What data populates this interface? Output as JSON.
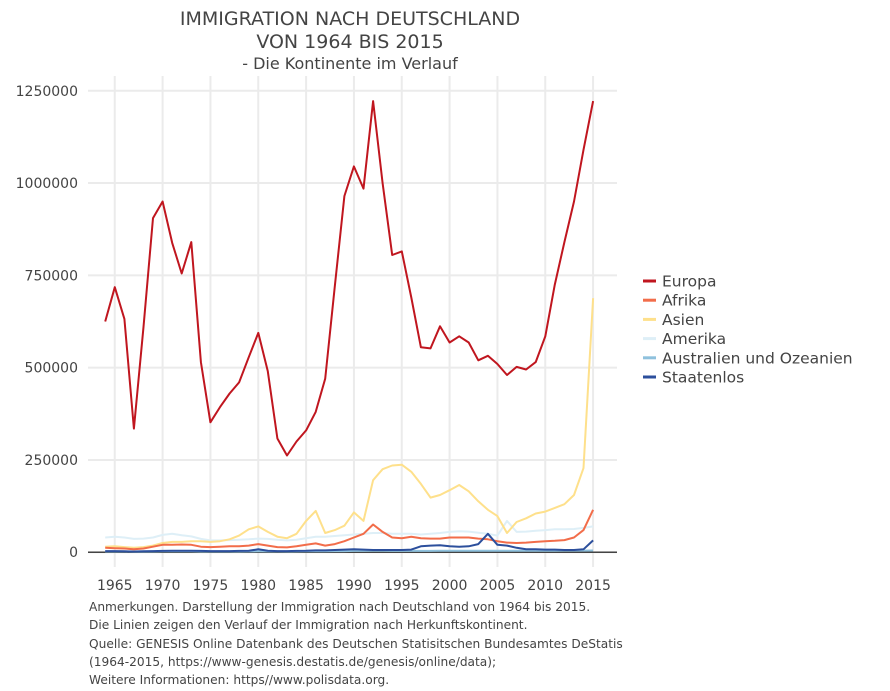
{
  "title_line1": "IMMIGRATION NACH DEUTSCHLAND",
  "title_line2": "VON 1964 BIS 2015",
  "subtitle": "- Die Kontinente im Verlauf",
  "notes": [
    "Anmerkungen. Darstellung der Immigration nach Deutschland von 1964 bis 2015.",
    "Die Linien zeigen den Verlauf der Immigration nach Herkunftskontinent.",
    "Quelle: GENESIS Online Datenbank des Deutschen Statisitschen Bundesamtes DeStatis",
    "(1964-2015, https://www-genesis.destatis.de/genesis/online/data);",
    " Weitere Informationen: https//www.polisdata.org."
  ],
  "chart_data": {
    "type": "line",
    "x_tick_labels": [
      "1965",
      "1970",
      "1975",
      "1980",
      "1985",
      "1990",
      "1995",
      "2000",
      "2005",
      "2010",
      "2015"
    ],
    "y_tick_labels": [
      "0",
      "250000",
      "500000",
      "750000",
      "1000000",
      "1250000"
    ],
    "xlim": [
      1962.2,
      2017.5
    ],
    "ylim": [
      -40000,
      1290000
    ],
    "grid": true,
    "legend_position": "right",
    "x": [
      1964,
      1965,
      1966,
      1967,
      1968,
      1969,
      1970,
      1971,
      1972,
      1973,
      1974,
      1975,
      1976,
      1977,
      1978,
      1979,
      1980,
      1981,
      1982,
      1983,
      1984,
      1985,
      1986,
      1987,
      1988,
      1989,
      1990,
      1991,
      1992,
      1993,
      1994,
      1995,
      1996,
      1997,
      1998,
      1999,
      2000,
      2001,
      2002,
      2003,
      2004,
      2005,
      2006,
      2007,
      2008,
      2009,
      2010,
      2011,
      2012,
      2013,
      2014,
      2015
    ],
    "series": [
      {
        "name": "Europa",
        "color": "#c0161f",
        "values": [
          625000,
          718000,
          632000,
          335000,
          610000,
          905000,
          950000,
          838000,
          755000,
          840000,
          515000,
          352000,
          393000,
          430000,
          460000,
          528000,
          594000,
          490000,
          308000,
          262000,
          300000,
          330000,
          380000,
          470000,
          720000,
          965000,
          1045000,
          985000,
          1222000,
          1000000,
          805000,
          815000,
          690000,
          555000,
          552000,
          612000,
          568000,
          585000,
          568000,
          520000,
          532000,
          510000,
          480000,
          502000,
          495000,
          515000,
          585000,
          725000,
          840000,
          950000,
          1090000,
          1222000
        ]
      },
      {
        "name": "Afrika",
        "color": "#f26d4a",
        "values": [
          12000,
          11000,
          10000,
          8000,
          10000,
          15000,
          20000,
          20000,
          21000,
          20000,
          15000,
          14000,
          15000,
          16000,
          16000,
          18000,
          22000,
          18000,
          14000,
          13000,
          16000,
          20000,
          24000,
          18000,
          22000,
          30000,
          40000,
          50000,
          75000,
          55000,
          40000,
          38000,
          42000,
          38000,
          37000,
          37000,
          40000,
          40000,
          40000,
          37000,
          35000,
          30000,
          26000,
          25000,
          26000,
          28000,
          30000,
          31000,
          33000,
          40000,
          60000,
          115000
        ]
      },
      {
        "name": "Asien",
        "color": "#fee08b",
        "values": [
          15000,
          16000,
          14000,
          12000,
          14000,
          18000,
          25000,
          28000,
          28000,
          30000,
          30000,
          28000,
          30000,
          35000,
          45000,
          62000,
          70000,
          55000,
          42000,
          38000,
          50000,
          85000,
          112000,
          52000,
          60000,
          72000,
          108000,
          85000,
          195000,
          225000,
          235000,
          237000,
          218000,
          185000,
          148000,
          155000,
          168000,
          182000,
          165000,
          138000,
          115000,
          98000,
          52000,
          82000,
          92000,
          105000,
          110000,
          120000,
          130000,
          155000,
          228000,
          688000
        ]
      },
      {
        "name": "Amerika",
        "color": "#deeff7",
        "values": [
          40000,
          42000,
          40000,
          36000,
          37000,
          40000,
          47000,
          50000,
          46000,
          43000,
          36000,
          32000,
          32000,
          33000,
          34000,
          35000,
          37000,
          36000,
          34000,
          32000,
          34000,
          38000,
          42000,
          42000,
          44000,
          46000,
          48000,
          50000,
          52000,
          52000,
          50000,
          50000,
          50000,
          48000,
          50000,
          52000,
          55000,
          57000,
          56000,
          53000,
          50000,
          45000,
          85000,
          55000,
          56000,
          58000,
          60000,
          62000,
          62000,
          63000,
          66000,
          70000
        ]
      },
      {
        "name": "Australien und Ozeanien",
        "color": "#8fc1dd",
        "values": [
          2000,
          2000,
          2000,
          1500,
          1800,
          2000,
          2500,
          2500,
          2500,
          2500,
          2000,
          2000,
          2000,
          2000,
          2000,
          2200,
          2500,
          2300,
          2200,
          2000,
          2200,
          2500,
          2800,
          2800,
          3000,
          3200,
          3500,
          3500,
          3800,
          3800,
          3700,
          3600,
          3600,
          3600,
          3700,
          3800,
          4000,
          4100,
          4000,
          3900,
          3800,
          3800,
          3800,
          3800,
          3900,
          4000,
          4100,
          4200,
          4300,
          4400,
          4500,
          4600
        ]
      },
      {
        "name": "Staatenlos",
        "color": "#2c4f9c",
        "values": [
          3000,
          3000,
          2500,
          2000,
          2500,
          3000,
          3500,
          4000,
          4000,
          4000,
          3500,
          3000,
          3000,
          3000,
          3500,
          4000,
          8000,
          4000,
          3000,
          3000,
          3500,
          4000,
          5000,
          5000,
          6000,
          7000,
          8000,
          7000,
          6000,
          6000,
          6000,
          6000,
          7000,
          16000,
          18000,
          19000,
          16000,
          15000,
          16000,
          22000,
          50000,
          20000,
          18000,
          12000,
          8000,
          8000,
          7000,
          7000,
          6000,
          6000,
          8000,
          32000
        ]
      }
    ]
  }
}
